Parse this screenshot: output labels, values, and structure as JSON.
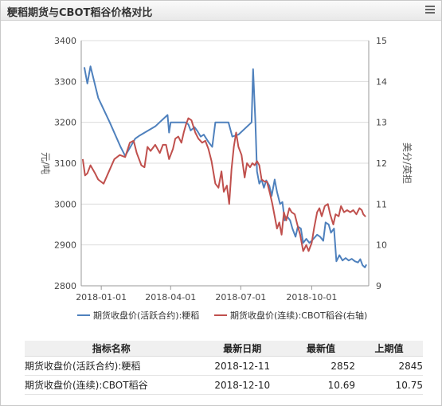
{
  "header": {
    "title": "粳稻期货与CBOT稻谷价格对比",
    "menu_icon": "hamburger-menu-icon"
  },
  "chart_data": {
    "type": "line",
    "y_left": {
      "label": "元/吨",
      "min": 2800,
      "max": 3400,
      "ticks": [
        2800,
        2900,
        3000,
        3100,
        3200,
        3300,
        3400
      ]
    },
    "y_right": {
      "label": "美分/英担",
      "min": 9,
      "max": 15,
      "ticks": [
        9,
        10,
        11,
        12,
        13,
        14,
        15
      ]
    },
    "x_ticks": [
      "2018-01-01",
      "2018-04-01",
      "2018-07-01",
      "2018-10-01"
    ],
    "grid": "horizontal",
    "legend_position": "bottom",
    "series": [
      {
        "name": "期货收盘价(活跃合约):粳稻",
        "axis": "left",
        "color": "#4f81bd",
        "points": [
          [
            "2017-12-10",
            3335
          ],
          [
            "2017-12-14",
            3295
          ],
          [
            "2017-12-18",
            3337
          ],
          [
            "2017-12-28",
            3260
          ],
          [
            "2018-01-12",
            3200
          ],
          [
            "2018-01-26",
            3140
          ],
          [
            "2018-02-01",
            3118
          ],
          [
            "2018-02-14",
            3160
          ],
          [
            "2018-02-20",
            3168
          ],
          [
            "2018-03-12",
            3190
          ],
          [
            "2018-03-28",
            3218
          ],
          [
            "2018-03-30",
            3175
          ],
          [
            "2018-04-01",
            3200
          ],
          [
            "2018-04-20",
            3200
          ],
          [
            "2018-04-24",
            3195
          ],
          [
            "2018-04-27",
            3180
          ],
          [
            "2018-05-02",
            3188
          ],
          [
            "2018-05-06",
            3178
          ],
          [
            "2018-05-10",
            3165
          ],
          [
            "2018-05-14",
            3170
          ],
          [
            "2018-05-20",
            3152
          ],
          [
            "2018-05-25",
            3140
          ],
          [
            "2018-05-29",
            3200
          ],
          [
            "2018-06-10",
            3200
          ],
          [
            "2018-06-15",
            3200
          ],
          [
            "2018-06-20",
            3165
          ],
          [
            "2018-06-28",
            3170
          ],
          [
            "2018-07-15",
            3200
          ],
          [
            "2018-07-17",
            3330
          ],
          [
            "2018-07-20",
            3200
          ],
          [
            "2018-07-22",
            3080
          ],
          [
            "2018-07-25",
            3050
          ],
          [
            "2018-07-28",
            3060
          ],
          [
            "2018-07-31",
            3040
          ],
          [
            "2018-08-03",
            3058
          ],
          [
            "2018-08-07",
            3045
          ],
          [
            "2018-08-10",
            3020
          ],
          [
            "2018-08-14",
            3060
          ],
          [
            "2018-08-17",
            3030
          ],
          [
            "2018-08-21",
            3000
          ],
          [
            "2018-08-24",
            3005
          ],
          [
            "2018-08-27",
            2960
          ],
          [
            "2018-08-30",
            2970
          ],
          [
            "2018-09-03",
            2960
          ],
          [
            "2018-09-06",
            2940
          ],
          [
            "2018-09-10",
            2920
          ],
          [
            "2018-09-13",
            2945
          ],
          [
            "2018-09-17",
            2940
          ],
          [
            "2018-09-20",
            2905
          ],
          [
            "2018-09-24",
            2915
          ],
          [
            "2018-09-28",
            2905
          ],
          [
            "2018-10-01",
            2910
          ],
          [
            "2018-10-08",
            2925
          ],
          [
            "2018-10-12",
            2920
          ],
          [
            "2018-10-16",
            2910
          ],
          [
            "2018-10-19",
            2955
          ],
          [
            "2018-10-23",
            2950
          ],
          [
            "2018-10-26",
            2930
          ],
          [
            "2018-10-30",
            2940
          ],
          [
            "2018-11-02",
            2860
          ],
          [
            "2018-11-06",
            2875
          ],
          [
            "2018-11-10",
            2862
          ],
          [
            "2018-11-14",
            2868
          ],
          [
            "2018-11-18",
            2862
          ],
          [
            "2018-11-22",
            2866
          ],
          [
            "2018-11-26",
            2860
          ],
          [
            "2018-11-30",
            2857
          ],
          [
            "2018-12-03",
            2865
          ],
          [
            "2018-12-06",
            2850
          ],
          [
            "2018-12-09",
            2845
          ],
          [
            "2018-12-11",
            2852
          ]
        ]
      },
      {
        "name": "期货收盘价(连续):CBOT稻谷(右轴)",
        "axis": "right",
        "color": "#c0504d",
        "points": [
          [
            "2017-12-08",
            12.1
          ],
          [
            "2017-12-11",
            11.7
          ],
          [
            "2017-12-14",
            11.75
          ],
          [
            "2017-12-18",
            11.95
          ],
          [
            "2017-12-24",
            11.75
          ],
          [
            "2017-12-28",
            11.6
          ],
          [
            "2018-01-04",
            11.5
          ],
          [
            "2018-01-11",
            11.8
          ],
          [
            "2018-01-18",
            12.1
          ],
          [
            "2018-01-25",
            12.2
          ],
          [
            "2018-02-01",
            12.15
          ],
          [
            "2018-02-07",
            12.5
          ],
          [
            "2018-02-12",
            12.55
          ],
          [
            "2018-02-16",
            12.25
          ],
          [
            "2018-02-22",
            11.95
          ],
          [
            "2018-02-26",
            11.9
          ],
          [
            "2018-03-02",
            12.4
          ],
          [
            "2018-03-06",
            12.3
          ],
          [
            "2018-03-12",
            12.45
          ],
          [
            "2018-03-18",
            12.25
          ],
          [
            "2018-03-22",
            12.45
          ],
          [
            "2018-03-26",
            12.45
          ],
          [
            "2018-03-30",
            12.1
          ],
          [
            "2018-04-04",
            12.35
          ],
          [
            "2018-04-07",
            12.6
          ],
          [
            "2018-04-11",
            12.65
          ],
          [
            "2018-04-15",
            12.5
          ],
          [
            "2018-04-18",
            12.75
          ],
          [
            "2018-04-21",
            12.95
          ],
          [
            "2018-04-24",
            13.1
          ],
          [
            "2018-04-28",
            13.05
          ],
          [
            "2018-05-03",
            12.75
          ],
          [
            "2018-05-07",
            12.6
          ],
          [
            "2018-05-12",
            12.5
          ],
          [
            "2018-05-16",
            12.55
          ],
          [
            "2018-05-20",
            12.35
          ],
          [
            "2018-05-24",
            12.05
          ],
          [
            "2018-05-29",
            11.5
          ],
          [
            "2018-06-02",
            11.4
          ],
          [
            "2018-06-06",
            11.8
          ],
          [
            "2018-06-09",
            11.3
          ],
          [
            "2018-06-13",
            11.45
          ],
          [
            "2018-06-16",
            11.0
          ],
          [
            "2018-06-19",
            11.85
          ],
          [
            "2018-06-22",
            12.4
          ],
          [
            "2018-06-25",
            12.75
          ],
          [
            "2018-06-28",
            12.4
          ],
          [
            "2018-07-02",
            12.2
          ],
          [
            "2018-07-06",
            11.65
          ],
          [
            "2018-07-09",
            12.0
          ],
          [
            "2018-07-13",
            11.9
          ],
          [
            "2018-07-16",
            12.0
          ],
          [
            "2018-07-19",
            11.95
          ],
          [
            "2018-07-22",
            12.05
          ],
          [
            "2018-07-25",
            11.95
          ],
          [
            "2018-07-28",
            11.6
          ],
          [
            "2018-08-01",
            11.55
          ],
          [
            "2018-08-04",
            11.55
          ],
          [
            "2018-08-08",
            11.25
          ],
          [
            "2018-08-11",
            11.0
          ],
          [
            "2018-08-14",
            10.7
          ],
          [
            "2018-08-17",
            10.4
          ],
          [
            "2018-08-20",
            10.55
          ],
          [
            "2018-08-23",
            10.25
          ],
          [
            "2018-08-26",
            10.8
          ],
          [
            "2018-08-29",
            10.6
          ],
          [
            "2018-09-02",
            10.9
          ],
          [
            "2018-09-05",
            10.8
          ],
          [
            "2018-09-09",
            10.75
          ],
          [
            "2018-09-13",
            10.45
          ],
          [
            "2018-09-16",
            10.25
          ],
          [
            "2018-09-20",
            9.85
          ],
          [
            "2018-09-24",
            10.0
          ],
          [
            "2018-09-27",
            9.85
          ],
          [
            "2018-10-01",
            10.05
          ],
          [
            "2018-10-04",
            10.4
          ],
          [
            "2018-10-08",
            10.8
          ],
          [
            "2018-10-11",
            10.9
          ],
          [
            "2018-10-14",
            10.7
          ],
          [
            "2018-10-18",
            10.95
          ],
          [
            "2018-10-22",
            11.0
          ],
          [
            "2018-10-25",
            10.75
          ],
          [
            "2018-10-29",
            10.5
          ],
          [
            "2018-11-01",
            10.75
          ],
          [
            "2018-11-05",
            10.7
          ],
          [
            "2018-11-08",
            10.95
          ],
          [
            "2018-11-12",
            10.8
          ],
          [
            "2018-11-16",
            10.85
          ],
          [
            "2018-11-20",
            10.8
          ],
          [
            "2018-11-24",
            10.85
          ],
          [
            "2018-11-28",
            10.75
          ],
          [
            "2018-12-02",
            10.9
          ],
          [
            "2018-12-05",
            10.85
          ],
          [
            "2018-12-07",
            10.75
          ],
          [
            "2018-12-10",
            10.69
          ]
        ]
      }
    ]
  },
  "table": {
    "headers": [
      "指标名称",
      "最新日期",
      "最新值",
      "上期值"
    ],
    "rows": [
      [
        "期货收盘价(活跃合约):粳稻",
        "2018-12-11",
        "2852",
        "2845"
      ],
      [
        "期货收盘价(连续):CBOT稻谷",
        "2018-12-10",
        "10.69",
        "10.75"
      ]
    ]
  }
}
